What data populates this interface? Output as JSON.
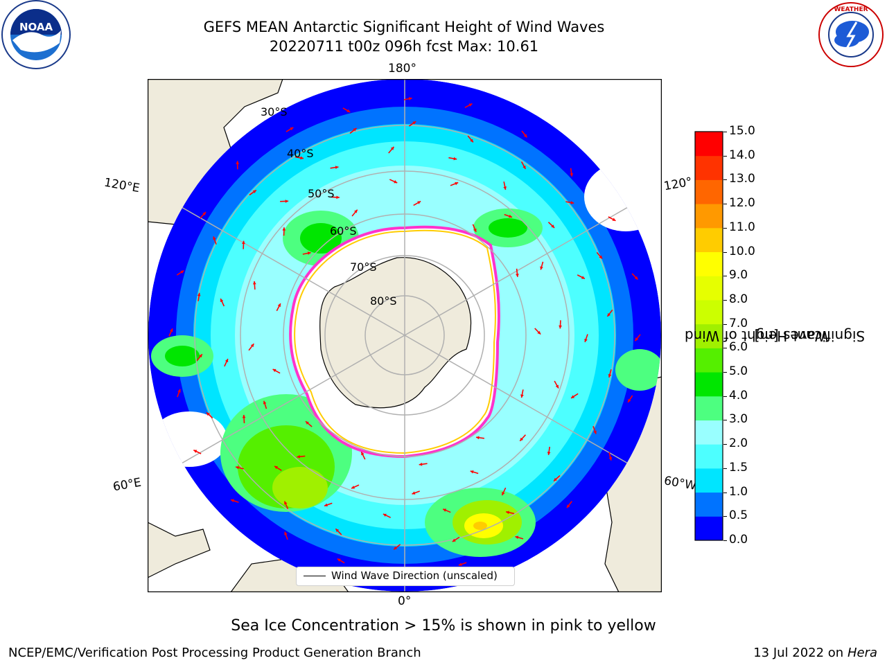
{
  "header": {
    "title_line1": "GEFS MEAN Antarctic Significant Height of Wind Waves",
    "title_line2": "20220711 t00z 096h fcst   Max: 10.61"
  },
  "logos": {
    "left": "noaa-logo",
    "left_text": "NOAA",
    "right": "nws-logo",
    "right_text": "NATIONAL WEATHER SERVICE"
  },
  "map": {
    "projection": "south-polar-stereographic",
    "lon_labels": {
      "top": "180°",
      "bottom": "0°",
      "upper_left": "120°E",
      "upper_right": "120°",
      "lower_left": "60°E",
      "lower_right": "60°W"
    },
    "lat_labels": [
      "30°S",
      "40°S",
      "50°S",
      "60°S",
      "70°S",
      "80°S"
    ],
    "legend": "Wind Wave Direction (unscaled)",
    "arrow_color": "#ff0000",
    "ice_edge_colors": [
      "#ff33cc",
      "#ffcc00"
    ],
    "land_color": "#efebdc"
  },
  "colorbar": {
    "title_line1": "Significant Height of Wind",
    "title_line2": "Waves [m]",
    "ticks": [
      "0.0",
      "0.5",
      "1.0",
      "1.5",
      "2.0",
      "3.0",
      "4.0",
      "5.0",
      "6.0",
      "7.0",
      "8.0",
      "9.0",
      "10.0",
      "11.0",
      "12.0",
      "13.0",
      "14.0",
      "15.0"
    ],
    "colors": [
      "#0000ff",
      "#0073ff",
      "#00e5ff",
      "#4dffff",
      "#99ffff",
      "#4dff80",
      "#00e600",
      "#55ef00",
      "#a0f000",
      "#ccff00",
      "#e6ff00",
      "#ffff00",
      "#ffcc00",
      "#ff9900",
      "#ff6600",
      "#ff3300",
      "#ff0000"
    ]
  },
  "chart_data": {
    "type": "heatmap",
    "title": "GEFS MEAN Antarctic Significant Height of Wind Waves",
    "subtitle": "20220711 t00z 096h fcst   Max: 10.61",
    "variable": "Significant Height of Wind Waves [m]",
    "max": 10.61,
    "colorbar_range": [
      0.0,
      15.0
    ],
    "colorbar_levels": [
      0.0,
      0.5,
      1.0,
      1.5,
      2.0,
      3.0,
      4.0,
      5.0,
      6.0,
      7.0,
      8.0,
      9.0,
      10.0,
      11.0,
      12.0,
      13.0,
      14.0,
      15.0
    ]
  },
  "footer": {
    "note": "Sea Ice Concentration > 15% is shown in pink to yellow",
    "left": "NCEP/EMC/Verification Post Processing Product Generation Branch",
    "right_date": "13 Jul 2022 on ",
    "right_host": "Hera"
  }
}
